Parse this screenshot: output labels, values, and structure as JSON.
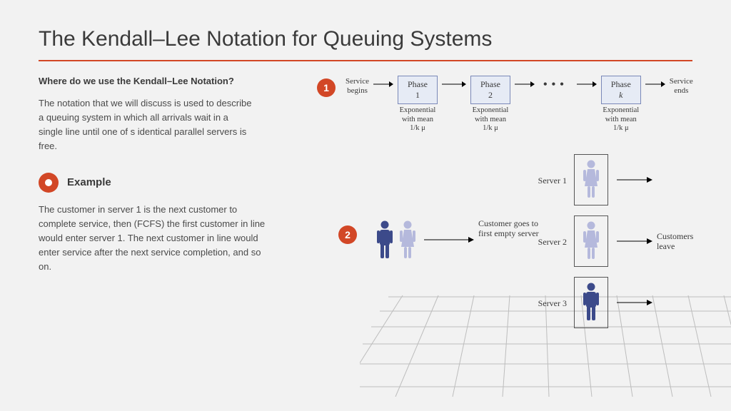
{
  "title": "The Kendall–Lee Notation for Queuing Systems",
  "accent_color": "#d24726",
  "left": {
    "question": "Where do we use the Kendall–Lee Notation?",
    "para1": "The notation that we will discuss is used to describe a queuing system in which all arrivals wait in a single line until one of s identical parallel servers is free.",
    "example_label": "Example",
    "para2": "The customer in server 1 is the next customer to complete service, then (FCFS) the first customer in line would enter server 1. The next customer in line would enter service after the next service completion, and so on."
  },
  "diagram1": {
    "badge": "1",
    "service_begins": "Service\nbegins",
    "service_ends": "Service\nends",
    "phases": [
      {
        "label": "Phase 1",
        "sub": "Exponential\nwith mean\n1/k μ"
      },
      {
        "label": "Phase 2",
        "sub": "Exponential\nwith mean\n1/k μ"
      },
      {
        "label": "Phase k",
        "sub": "Exponential\nwith mean\n1/k μ",
        "italic_k": true
      }
    ],
    "box_fill": "#e6ebf5",
    "box_border": "#7a88b8"
  },
  "diagram2": {
    "badge": "2",
    "servers": [
      {
        "label": "Server 1",
        "figure": "female",
        "fill": "#b5b9dc"
      },
      {
        "label": "Server 2",
        "figure": "female",
        "fill": "#b5b9dc"
      },
      {
        "label": "Server 3",
        "figure": "male",
        "fill": "#3c4a8a"
      }
    ],
    "waiting": [
      {
        "figure": "male",
        "fill": "#3c4a8a"
      },
      {
        "figure": "female",
        "fill": "#b5b9dc"
      }
    ],
    "goes_to_label": "Customer goes to\nfirst empty server",
    "customers_leave": "Customers\nleave",
    "grid_color": "#bdbdbd"
  }
}
